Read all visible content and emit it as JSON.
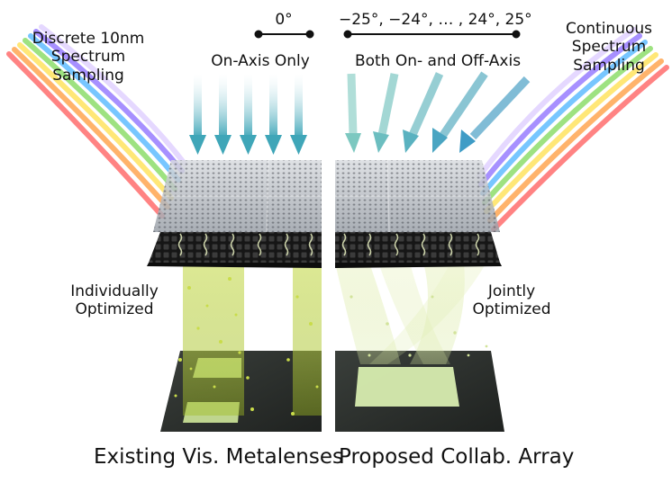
{
  "labels": {
    "left_sampling": [
      "Discrete 10nm",
      "Spectrum",
      "Sampling"
    ],
    "right_sampling": [
      "Continuous",
      "Spectrum",
      "Sampling"
    ],
    "left_angle": "0°",
    "right_angle": "−25°, −24°, … , 24°, 25°",
    "left_axis": "On-Axis Only",
    "right_axis": "Both On- and Off-Axis",
    "left_opt": [
      "Individually",
      "Optimized"
    ],
    "right_opt": [
      "Jointly",
      "Optimized"
    ]
  },
  "captions": {
    "left": "Existing Vis. Metalenses",
    "right": "Proposed Collab. Array"
  },
  "colors": {
    "arrow": "#3fa6b8",
    "beam": "#b5cd3e",
    "sensor": "#2b2f2c",
    "substrate": "#1a1a1a"
  }
}
